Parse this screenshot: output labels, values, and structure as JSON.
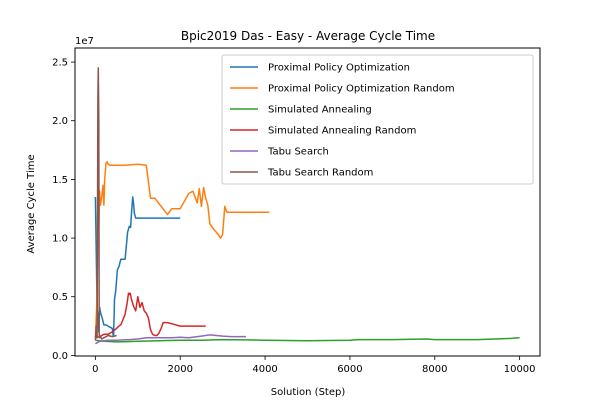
{
  "chart_data": {
    "type": "line",
    "title": "Bpic2019 Das - Easy - Average Cycle Time",
    "xlabel": "Solution (Step)",
    "ylabel": "Average Cycle Time",
    "y_offset_label": "1e7",
    "xlim": [
      -480,
      10480
    ],
    "ylim": [
      -50000,
      26200000
    ],
    "x_ticks": [
      0,
      2000,
      4000,
      6000,
      8000,
      10000
    ],
    "y_ticks": [
      0,
      5000000,
      10000000,
      15000000,
      20000000,
      25000000
    ],
    "y_tick_labels": [
      "0.0",
      "0.5",
      "1.0",
      "1.5",
      "2.0",
      "2.5"
    ],
    "legend_position": "upper right",
    "series": [
      {
        "name": "Proximal Policy Optimization",
        "color": "#1f77b4",
        "x": [
          0,
          20,
          40,
          60,
          80,
          100,
          130,
          160,
          200,
          250,
          300,
          350,
          400,
          420,
          430,
          450,
          480,
          520,
          560,
          600,
          640,
          700,
          760,
          800,
          830,
          850,
          880,
          900,
          920,
          950,
          1000,
          1100,
          1200,
          1400,
          1600,
          1800,
          2000
        ],
        "y": [
          13500000,
          9000000,
          4000000,
          3500000,
          2000000,
          4100000,
          3500000,
          3200000,
          2600000,
          2600000,
          2500000,
          2400000,
          2300000,
          1700000,
          1700000,
          4800000,
          5500000,
          7300000,
          7600000,
          8200000,
          8200000,
          8200000,
          10500000,
          11000000,
          10900000,
          12000000,
          13500000,
          13000000,
          12100000,
          11700000,
          11700000,
          11700000,
          11700000,
          11700000,
          11700000,
          11700000,
          11700000
        ]
      },
      {
        "name": "Proximal Policy Optimization Random",
        "color": "#ff7f0e",
        "x": [
          0,
          30,
          60,
          80,
          100,
          120,
          150,
          180,
          200,
          220,
          250,
          280,
          300,
          350,
          400,
          500,
          700,
          1000,
          1200,
          1300,
          1350,
          1400,
          1700,
          1800,
          2000,
          2200,
          2300,
          2400,
          2450,
          2500,
          2550,
          2600,
          2650,
          2700,
          2800,
          2900,
          2950,
          3000,
          3050,
          3100,
          3500,
          4100
        ],
        "y": [
          1500000,
          4000000,
          10000000,
          11000000,
          14000000,
          12800000,
          13500000,
          14500000,
          12800000,
          15000000,
          16400000,
          16500000,
          16300000,
          16200000,
          16200000,
          16200000,
          16200000,
          16300000,
          16200000,
          13400000,
          13400000,
          13400000,
          12000000,
          12500000,
          12500000,
          13800000,
          14000000,
          13000000,
          14200000,
          12700000,
          14300000,
          13400000,
          12800000,
          11200000,
          10700000,
          10300000,
          10000000,
          10300000,
          12700000,
          12200000,
          12200000,
          12200000
        ]
      },
      {
        "name": "Simulated Annealing",
        "color": "#2ca02c",
        "x": [
          0,
          200,
          500,
          1000,
          1500,
          2000,
          2500,
          3000,
          4000,
          5000,
          6000,
          6200,
          7000,
          7800,
          8000,
          9000,
          9400,
          9800,
          10000
        ],
        "y": [
          1300000,
          1200000,
          1150000,
          1200000,
          1250000,
          1300000,
          1300000,
          1350000,
          1300000,
          1250000,
          1300000,
          1350000,
          1350000,
          1400000,
          1350000,
          1350000,
          1400000,
          1450000,
          1500000
        ]
      },
      {
        "name": "Simulated Annealing Random",
        "color": "#d62728",
        "x": [
          0,
          100,
          200,
          300,
          400,
          500,
          550,
          600,
          700,
          750,
          780,
          800,
          820,
          850,
          900,
          950,
          1000,
          1050,
          1100,
          1150,
          1200,
          1250,
          1300,
          1350,
          1400,
          1450,
          1500,
          1550,
          1600,
          1700,
          1800,
          2000,
          2200,
          2400,
          2600
        ],
        "y": [
          1500000,
          1600000,
          1800000,
          1800000,
          2000000,
          2300000,
          2500000,
          2600000,
          3500000,
          4500000,
          5300000,
          5200000,
          5300000,
          4800000,
          4200000,
          3800000,
          5000000,
          4100000,
          4500000,
          3800000,
          3600000,
          3200000,
          2200000,
          1800000,
          1700000,
          1700000,
          1900000,
          2300000,
          2800000,
          2800000,
          2700000,
          2500000,
          2500000,
          2500000,
          2500000
        ]
      },
      {
        "name": "Tabu Search",
        "color": "#9467bd",
        "x": [
          0,
          100,
          300,
          500,
          800,
          1000,
          1200,
          1500,
          1800,
          2000,
          2200,
          2500,
          2600,
          2700,
          3000,
          3200,
          3550
        ],
        "y": [
          1000000,
          1200000,
          1300000,
          1300000,
          1350000,
          1400000,
          1500000,
          1500000,
          1500000,
          1550000,
          1500000,
          1650000,
          1700000,
          1750000,
          1650000,
          1600000,
          1600000
        ]
      },
      {
        "name": "Tabu Search Random",
        "color": "#8c564b",
        "x": [
          0,
          20,
          40,
          60,
          70,
          80,
          90,
          100,
          120,
          150,
          200,
          300,
          400,
          500
        ],
        "y": [
          1300000,
          2500000,
          1500000,
          22000000,
          24500000,
          20000000,
          1800000,
          1500000,
          1600000,
          1400000,
          1500000,
          1700000,
          1600000,
          1700000
        ]
      }
    ]
  }
}
